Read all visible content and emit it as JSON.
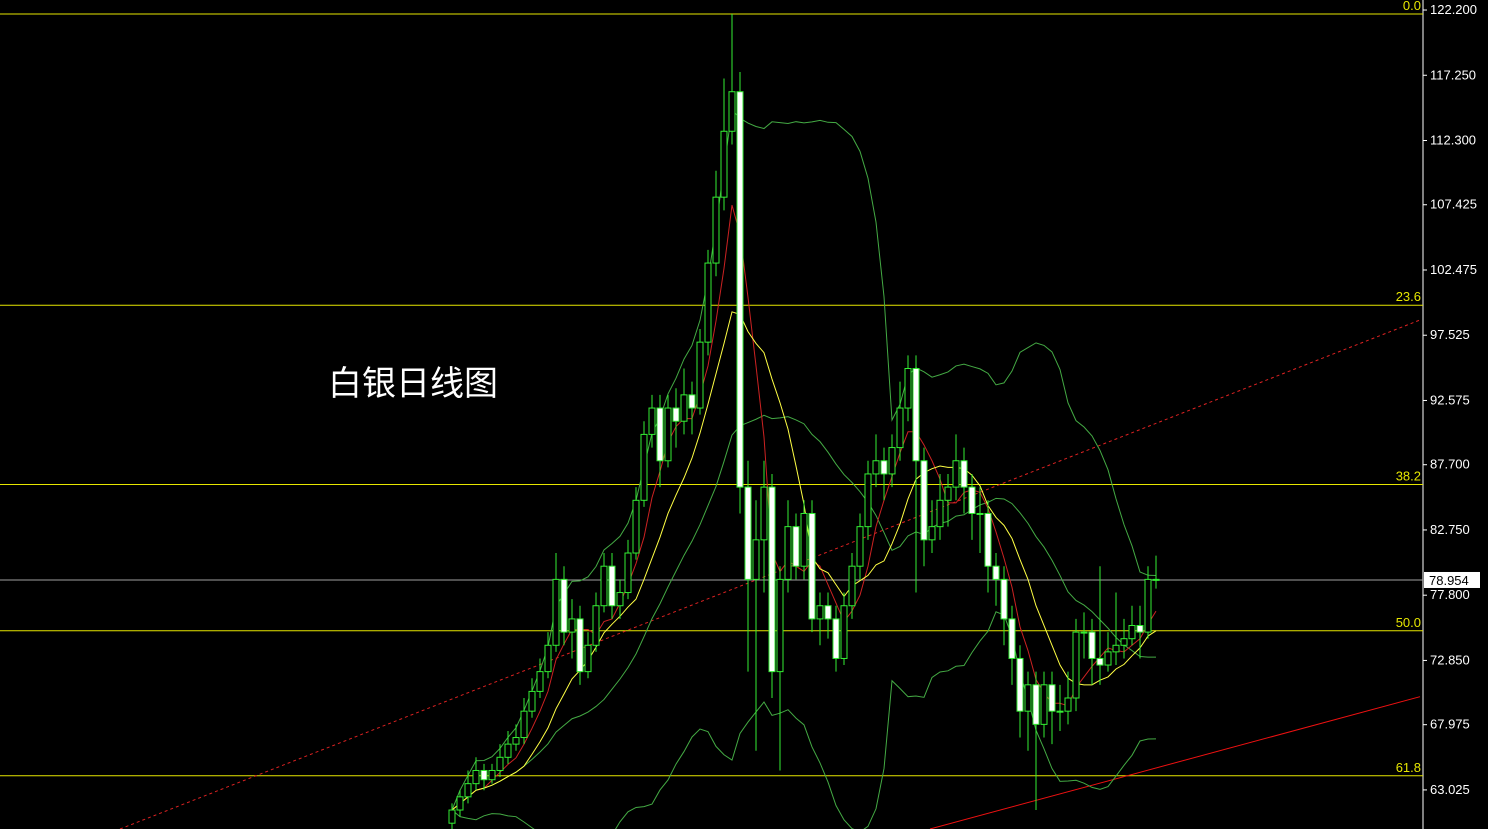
{
  "chart_data": {
    "type": "candlestick",
    "title": "白银日线图",
    "ylim": [
      60.06,
      122.96
    ],
    "y_ticks": [
      "122.200",
      "117.250",
      "112.300",
      "107.425",
      "102.475",
      "97.525",
      "92.575",
      "87.700",
      "82.750",
      "77.800",
      "72.850",
      "67.975",
      "63.025"
    ],
    "current_price": "78.954",
    "fib_levels": [
      {
        "label": "0.0",
        "price": 121.9
      },
      {
        "label": "23.6",
        "price": 99.8
      },
      {
        "label": "38.2",
        "price": 86.2
      },
      {
        "label": "50.0",
        "price": 75.1
      },
      {
        "label": "61.8",
        "price": 64.1
      }
    ],
    "ohlc": [
      [
        60.5,
        62,
        60,
        61.5
      ],
      [
        61.5,
        63,
        61,
        62.5
      ],
      [
        62.5,
        64.5,
        62,
        63.5
      ],
      [
        63.5,
        65.5,
        63,
        64.5
      ],
      [
        64.5,
        65,
        63,
        63.8
      ],
      [
        63.8,
        65,
        63.5,
        64.5
      ],
      [
        64.5,
        66.5,
        64,
        65.5
      ],
      [
        65.5,
        67.5,
        65,
        66.5
      ],
      [
        66.5,
        68,
        66,
        67
      ],
      [
        67,
        70,
        66.5,
        69
      ],
      [
        69,
        71.5,
        68.5,
        70.5
      ],
      [
        70.5,
        73,
        70,
        72
      ],
      [
        72,
        75,
        71.5,
        74
      ],
      [
        74,
        81,
        73.5,
        79
      ],
      [
        79,
        80,
        74,
        75
      ],
      [
        75,
        77.5,
        73,
        76
      ],
      [
        76,
        77,
        71,
        72
      ],
      [
        72,
        75,
        71.5,
        74
      ],
      [
        74,
        78,
        73.5,
        77
      ],
      [
        77,
        81,
        76.5,
        80
      ],
      [
        80,
        81,
        76,
        77
      ],
      [
        77,
        79,
        76,
        78
      ],
      [
        78,
        82,
        77.5,
        81
      ],
      [
        81,
        86,
        80.5,
        85
      ],
      [
        85,
        91,
        84.5,
        90
      ],
      [
        90,
        93,
        89,
        92
      ],
      [
        92,
        93,
        86,
        88
      ],
      [
        88,
        93,
        87.5,
        92
      ],
      [
        92,
        93.5,
        89,
        91
      ],
      [
        91,
        95,
        90,
        93
      ],
      [
        93,
        94,
        90,
        92
      ],
      [
        92,
        98,
        91.5,
        97
      ],
      [
        97,
        104,
        96,
        103
      ],
      [
        103,
        110,
        102,
        108
      ],
      [
        108,
        117,
        107,
        113
      ],
      [
        113,
        121.9,
        112,
        116
      ],
      [
        116,
        117.5,
        84,
        86
      ],
      [
        86,
        88,
        72,
        79
      ],
      [
        79,
        85,
        66,
        82
      ],
      [
        82,
        88,
        78,
        86
      ],
      [
        86,
        87,
        70,
        72
      ],
      [
        72,
        80,
        64.5,
        79
      ],
      [
        79,
        85,
        78,
        83
      ],
      [
        83,
        84,
        79,
        80
      ],
      [
        80,
        85,
        79,
        84
      ],
      [
        84,
        85,
        75,
        76
      ],
      [
        76,
        78,
        74,
        77
      ],
      [
        77,
        78,
        74.5,
        76
      ],
      [
        76,
        77,
        72,
        73
      ],
      [
        73,
        78,
        72.5,
        77
      ],
      [
        77,
        81,
        76,
        80
      ],
      [
        80,
        84,
        79,
        83
      ],
      [
        83,
        88,
        82,
        87
      ],
      [
        87,
        90,
        86,
        88
      ],
      [
        88,
        89,
        85,
        87
      ],
      [
        87,
        90,
        86,
        89
      ],
      [
        89,
        94,
        88,
        92
      ],
      [
        92,
        96,
        91,
        95
      ],
      [
        95,
        96,
        78,
        88
      ],
      [
        88,
        89,
        80,
        82
      ],
      [
        82,
        85,
        81,
        83
      ],
      [
        83,
        87,
        82,
        85
      ],
      [
        85,
        87,
        83,
        86
      ],
      [
        86,
        90,
        85,
        88
      ],
      [
        88,
        89,
        84,
        86
      ],
      [
        86,
        87,
        82,
        84
      ],
      [
        84,
        86,
        81,
        84
      ],
      [
        84,
        85,
        78,
        80
      ],
      [
        80,
        81,
        77,
        79
      ],
      [
        79,
        80,
        74,
        76
      ],
      [
        76,
        77,
        71,
        73
      ],
      [
        73,
        74,
        67,
        69
      ],
      [
        69,
        72,
        66,
        71
      ],
      [
        71,
        72,
        61.5,
        68
      ],
      [
        68,
        72,
        67,
        71
      ],
      [
        71,
        72,
        66.5,
        69
      ],
      [
        69,
        71,
        67.5,
        69
      ],
      [
        69,
        72,
        68,
        70
      ],
      [
        70,
        76,
        69,
        75
      ],
      [
        75,
        76.5,
        73,
        75
      ],
      [
        75,
        76,
        71,
        73
      ],
      [
        73,
        80,
        71,
        72.5
      ],
      [
        72.5,
        75,
        72,
        73.5
      ],
      [
        73.5,
        78,
        72.5,
        74
      ],
      [
        74,
        76,
        73,
        74.5
      ],
      [
        74.5,
        77,
        74,
        75.5
      ],
      [
        75.5,
        77,
        73,
        75
      ],
      [
        75,
        80,
        74.5,
        79
      ],
      [
        79,
        80.8,
        78.3,
        78.954
      ]
    ],
    "moving_averages": [
      {
        "period": 5,
        "color": "#cc2222"
      },
      {
        "period": 10,
        "color": "#ffff44"
      }
    ],
    "bollinger": {
      "period": 20,
      "deviations": 2,
      "color": "#44aa44"
    },
    "trendlines": [
      {
        "style": "dashed",
        "color": "#dd2222",
        "from": {
          "bar": -41.5,
          "price": 60.06
        },
        "to": {
          "bar": 121,
          "price": 98.68
        }
      },
      {
        "style": "solid",
        "color": "#ee1111",
        "from": {
          "bar": 59.75,
          "price": 60.06
        },
        "to": {
          "bar": 121,
          "price": 70.1
        }
      }
    ],
    "colors": {
      "background": "#000000",
      "candle": "#33ee33",
      "bear_fill": "#ffffff",
      "fib": "#e6e600",
      "axis": "#ffffff",
      "price_line": "#a0a0a0"
    }
  }
}
